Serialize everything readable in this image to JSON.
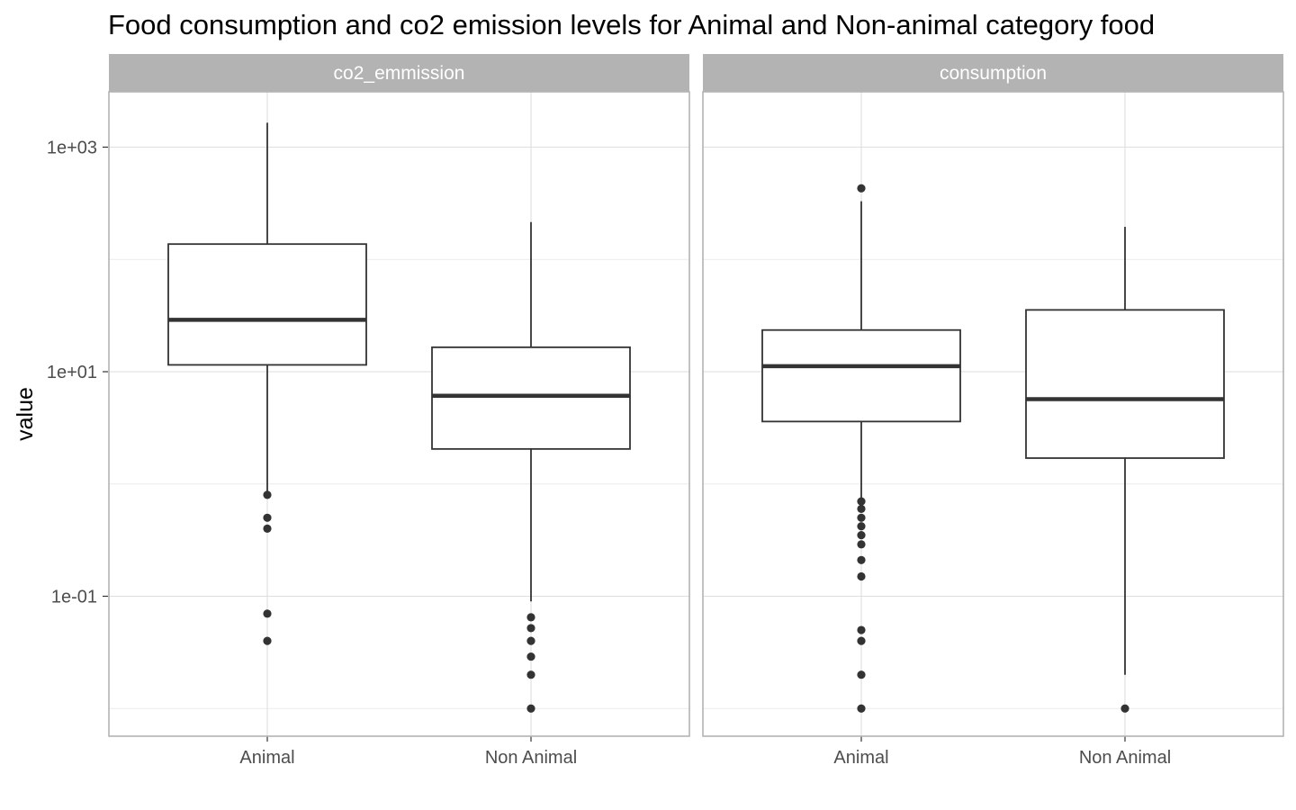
{
  "chart_data": {
    "type": "boxplot",
    "title": "Food consumption and co2 emission levels for Animal and Non-animal category food",
    "xlabel": "",
    "ylabel": "value",
    "y_scale": "log10",
    "ylim": [
      0.008,
      3000
    ],
    "y_ticks": [
      {
        "value": 0.1,
        "label": "1e-01"
      },
      {
        "value": 10,
        "label": "1e+01"
      },
      {
        "value": 1000,
        "label": "1e+03"
      }
    ],
    "y_minor_gridlines": [
      0.01,
      1,
      100
    ],
    "categories": [
      "Animal",
      "Non Animal"
    ],
    "grid": true,
    "legend": "none",
    "colors": {
      "strip_bg": "#b3b3b3",
      "box_line": "#333333",
      "grid": "#ebebeb",
      "panel_border": "#b3b3b3"
    },
    "panels": [
      {
        "name": "co2_emmission",
        "boxes": [
          {
            "category": "Animal",
            "whisker_low": 0.8,
            "q1": 11.5,
            "median": 29,
            "q3": 137,
            "whisker_high": 1650,
            "outliers": [
              0.8,
              0.5,
              0.4,
              0.07,
              0.04
            ]
          },
          {
            "category": "Non Animal",
            "whisker_low": 0.09,
            "q1": 2.05,
            "median": 6.1,
            "q3": 16.5,
            "whisker_high": 215,
            "outliers": [
              0.065,
              0.052,
              0.04,
              0.029,
              0.02,
              0.01
            ]
          }
        ]
      },
      {
        "name": "consumption",
        "boxes": [
          {
            "category": "Animal",
            "whisker_low": 0.7,
            "q1": 3.6,
            "median": 11.2,
            "q3": 23.5,
            "whisker_high": 330,
            "outliers": [
              430,
              0.7,
              0.6,
              0.5,
              0.42,
              0.35,
              0.29,
              0.21,
              0.15,
              0.05,
              0.04,
              0.02,
              0.01
            ]
          },
          {
            "category": "Non Animal",
            "whisker_low": 0.02,
            "q1": 1.7,
            "median": 5.7,
            "q3": 35.5,
            "whisker_high": 195,
            "outliers": [
              0.01
            ]
          }
        ]
      }
    ]
  }
}
